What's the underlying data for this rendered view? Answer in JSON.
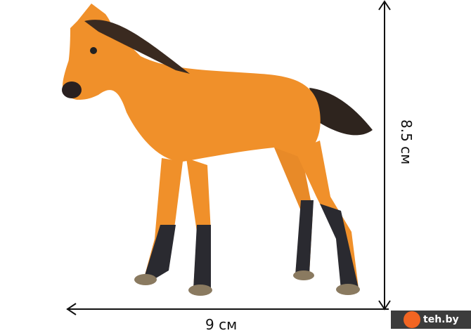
{
  "dimensions": {
    "width_label": "9 см",
    "height_label": "8.5 см"
  },
  "watermark": {
    "text": "teh.by",
    "accent": "#f26522"
  },
  "colors": {
    "horse_body": "#f0902a",
    "legs_dark": "#2a2a30",
    "mane": "#3a2a20",
    "hooves": "#8a7a60"
  }
}
